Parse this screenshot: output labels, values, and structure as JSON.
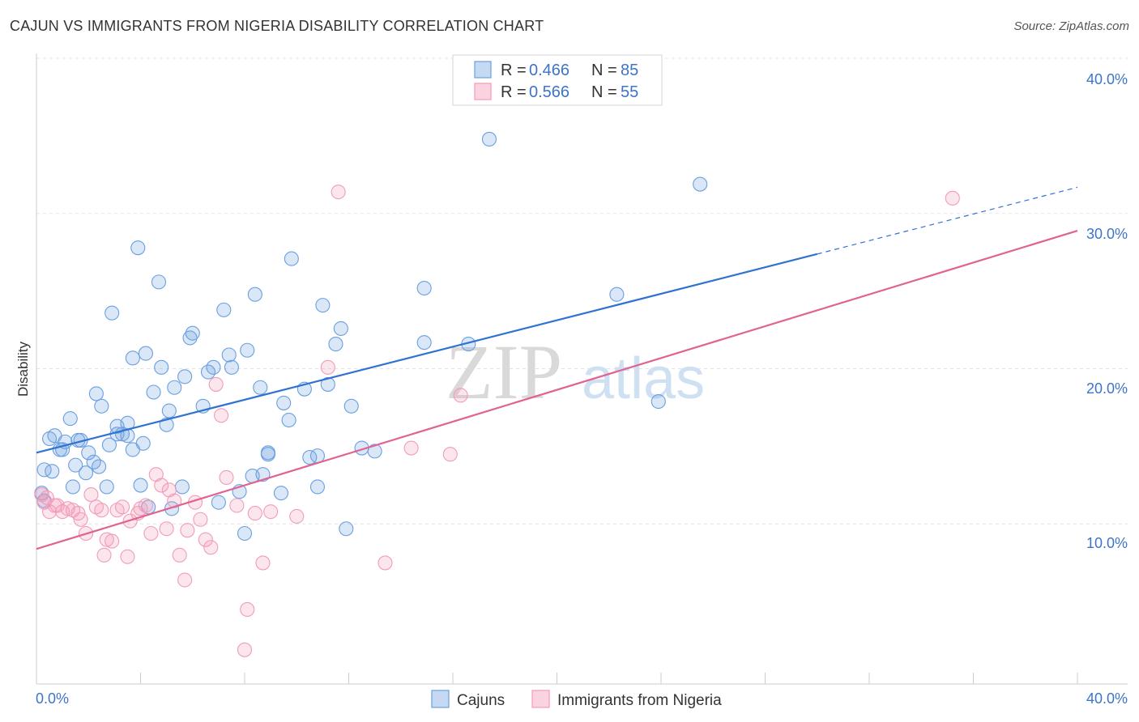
{
  "header": {
    "title": "CAJUN VS IMMIGRANTS FROM NIGERIA DISABILITY CORRELATION CHART",
    "source": "Source: ZipAtlas.com"
  },
  "watermark": {
    "zip": "ZIP",
    "atlas": "atlas"
  },
  "chart_data": {
    "type": "scatter",
    "title": "CAJUN VS IMMIGRANTS FROM NIGERIA DISABILITY CORRELATION CHART",
    "xlabel": "",
    "ylabel": "Disability",
    "xlim": [
      0,
      40
    ],
    "ylim": [
      0,
      40
    ],
    "x_tick_labels": [
      "0.0%",
      "40.0%"
    ],
    "y_ticks": [
      10,
      20,
      30,
      40
    ],
    "y_tick_labels": [
      "10.0%",
      "20.0%",
      "30.0%",
      "40.0%"
    ],
    "grid": true,
    "legend_position": "top-center",
    "series": [
      {
        "name": "Cajuns",
        "color": "#6a9fe0",
        "line_color": "#2f72d2",
        "r": "0.466",
        "n": "85",
        "trend": {
          "x0": 0,
          "y0": 14.9,
          "x1": 30,
          "y1": 27.7,
          "dashed_to_x": 40,
          "dashed_to_y": 32.0
        },
        "points": [
          [
            0.2,
            12.3
          ],
          [
            0.3,
            11.8
          ],
          [
            0.3,
            13.8
          ],
          [
            0.5,
            15.8
          ],
          [
            0.6,
            13.7
          ],
          [
            0.7,
            16.0
          ],
          [
            0.9,
            15.1
          ],
          [
            1.0,
            15.1
          ],
          [
            1.1,
            15.6
          ],
          [
            1.3,
            17.1
          ],
          [
            1.4,
            12.7
          ],
          [
            1.5,
            14.1
          ],
          [
            1.6,
            15.7
          ],
          [
            1.7,
            15.7
          ],
          [
            1.9,
            13.6
          ],
          [
            2.0,
            14.9
          ],
          [
            2.2,
            14.3
          ],
          [
            2.3,
            18.7
          ],
          [
            2.4,
            14.0
          ],
          [
            2.5,
            17.9
          ],
          [
            2.7,
            12.7
          ],
          [
            2.8,
            15.4
          ],
          [
            2.9,
            23.9
          ],
          [
            3.1,
            16.1
          ],
          [
            3.1,
            16.6
          ],
          [
            3.3,
            16.1
          ],
          [
            3.5,
            16.0
          ],
          [
            3.5,
            16.8
          ],
          [
            3.7,
            21.0
          ],
          [
            3.7,
            15.1
          ],
          [
            3.9,
            28.1
          ],
          [
            4.0,
            12.8
          ],
          [
            4.1,
            15.5
          ],
          [
            4.2,
            21.3
          ],
          [
            4.3,
            11.4
          ],
          [
            4.5,
            18.8
          ],
          [
            4.7,
            25.9
          ],
          [
            4.8,
            20.4
          ],
          [
            5.0,
            16.7
          ],
          [
            5.1,
            17.6
          ],
          [
            5.2,
            11.3
          ],
          [
            5.3,
            19.1
          ],
          [
            5.6,
            12.7
          ],
          [
            5.7,
            19.8
          ],
          [
            5.9,
            22.3
          ],
          [
            6.0,
            22.6
          ],
          [
            6.4,
            17.9
          ],
          [
            6.6,
            20.1
          ],
          [
            6.8,
            20.4
          ],
          [
            7.0,
            11.7
          ],
          [
            7.2,
            24.1
          ],
          [
            7.4,
            21.2
          ],
          [
            7.5,
            20.4
          ],
          [
            7.8,
            12.4
          ],
          [
            8.0,
            9.7
          ],
          [
            8.1,
            21.5
          ],
          [
            8.4,
            25.1
          ],
          [
            8.3,
            13.4
          ],
          [
            8.6,
            19.1
          ],
          [
            8.7,
            13.5
          ],
          [
            8.9,
            14.8
          ],
          [
            8.9,
            14.9
          ],
          [
            9.4,
            12.3
          ],
          [
            9.5,
            18.1
          ],
          [
            9.7,
            17.0
          ],
          [
            9.8,
            27.4
          ],
          [
            10.3,
            19.0
          ],
          [
            10.5,
            14.6
          ],
          [
            10.8,
            14.7
          ],
          [
            10.8,
            12.7
          ],
          [
            11.0,
            24.4
          ],
          [
            11.2,
            19.3
          ],
          [
            11.5,
            21.9
          ],
          [
            11.7,
            22.9
          ],
          [
            11.9,
            10.0
          ],
          [
            12.1,
            17.9
          ],
          [
            12.5,
            15.2
          ],
          [
            13.0,
            15.0
          ],
          [
            14.9,
            25.5
          ],
          [
            14.9,
            22.0
          ],
          [
            16.6,
            21.9
          ],
          [
            17.4,
            35.1
          ],
          [
            22.3,
            25.1
          ],
          [
            23.9,
            18.2
          ],
          [
            25.5,
            32.2
          ]
        ]
      },
      {
        "name": "Immigrants from Nigeria",
        "color": "#f29bb8",
        "line_color": "#e06390",
        "r": "0.566",
        "n": "55",
        "trend": {
          "x0": 0,
          "y0": 8.7,
          "x1": 40,
          "y1": 29.2
        },
        "points": [
          [
            0.2,
            12.2
          ],
          [
            0.3,
            11.7
          ],
          [
            0.4,
            12.0
          ],
          [
            0.5,
            11.1
          ],
          [
            0.7,
            11.5
          ],
          [
            0.8,
            11.5
          ],
          [
            1.0,
            11.1
          ],
          [
            1.2,
            11.3
          ],
          [
            1.4,
            11.2
          ],
          [
            1.6,
            11.0
          ],
          [
            1.7,
            10.6
          ],
          [
            1.9,
            9.7
          ],
          [
            2.1,
            12.2
          ],
          [
            2.3,
            11.4
          ],
          [
            2.5,
            11.2
          ],
          [
            2.6,
            8.3
          ],
          [
            2.7,
            9.3
          ],
          [
            2.9,
            9.2
          ],
          [
            3.1,
            11.2
          ],
          [
            3.3,
            11.4
          ],
          [
            3.5,
            8.2
          ],
          [
            3.6,
            10.5
          ],
          [
            3.9,
            11.0
          ],
          [
            4.0,
            11.3
          ],
          [
            4.2,
            11.5
          ],
          [
            4.4,
            9.7
          ],
          [
            4.6,
            13.5
          ],
          [
            4.8,
            12.8
          ],
          [
            5.0,
            10.0
          ],
          [
            5.1,
            12.5
          ],
          [
            5.3,
            11.8
          ],
          [
            5.5,
            8.3
          ],
          [
            5.7,
            6.7
          ],
          [
            5.8,
            9.9
          ],
          [
            6.1,
            11.7
          ],
          [
            6.3,
            10.6
          ],
          [
            6.5,
            9.3
          ],
          [
            6.7,
            8.8
          ],
          [
            6.9,
            19.3
          ],
          [
            7.1,
            17.3
          ],
          [
            7.3,
            13.3
          ],
          [
            7.7,
            11.5
          ],
          [
            8.0,
            2.2
          ],
          [
            8.1,
            4.8
          ],
          [
            8.4,
            11.0
          ],
          [
            8.7,
            7.8
          ],
          [
            9.0,
            11.1
          ],
          [
            10.0,
            10.8
          ],
          [
            11.2,
            20.4
          ],
          [
            11.6,
            31.7
          ],
          [
            13.4,
            7.8
          ],
          [
            14.4,
            15.2
          ],
          [
            15.9,
            14.8
          ],
          [
            16.3,
            18.6
          ],
          [
            35.2,
            31.3
          ]
        ]
      }
    ]
  },
  "legend": {
    "r_label": "R =",
    "n_label": "N =",
    "items": [
      {
        "name": "Cajuns",
        "r": "0.466",
        "n": "85"
      },
      {
        "name": "Immigrants from Nigeria",
        "r": "0.566",
        "n": "55"
      }
    ]
  }
}
